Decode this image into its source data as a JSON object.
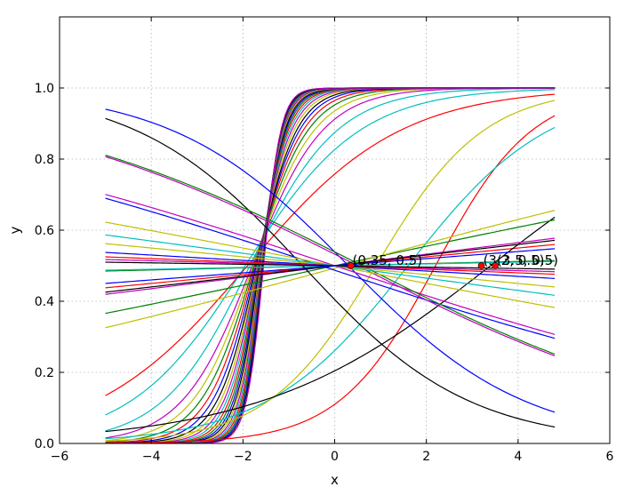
{
  "chart_data": {
    "type": "line",
    "title": "",
    "xlabel": "x",
    "ylabel": "y",
    "xlim": [
      -6,
      6
    ],
    "ylim": [
      0,
      1.2
    ],
    "xticks": [
      -6,
      -4,
      -2,
      0,
      2,
      4,
      6
    ],
    "xtick_labels": [
      "−6",
      "−4",
      "−2",
      "0",
      "2",
      "4",
      "6"
    ],
    "yticks": [
      0.0,
      0.2,
      0.4,
      0.6,
      0.8,
      1.0
    ],
    "ytick_labels": [
      "0.0",
      "0.2",
      "0.4",
      "0.6",
      "0.8",
      "1.0"
    ],
    "grid": true,
    "x_range": [
      -5,
      4.8
    ],
    "color_cycle": [
      "#0000ff",
      "#008000",
      "#ff0000",
      "#00bfbf",
      "#bf00bf",
      "#bfbf00",
      "#000000"
    ],
    "series": [
      {
        "x0": -1.9,
        "k": 0.6,
        "color": "#ff0000"
      },
      {
        "x0": -1.95,
        "k": 0.8,
        "color": "#00bfbf"
      },
      {
        "x0": -1.85,
        "k": 1.05,
        "color": "#00bfbf"
      },
      {
        "x0": -1.8,
        "k": 1.3,
        "color": "#bf00bf"
      },
      {
        "x0": -1.78,
        "k": 1.5,
        "color": "#bfbf00"
      },
      {
        "x0": -1.76,
        "k": 1.7,
        "color": "#008000"
      },
      {
        "x0": -1.74,
        "k": 1.9,
        "color": "#ff0000"
      },
      {
        "x0": -1.72,
        "k": 2.1,
        "color": "#0000ff"
      },
      {
        "x0": -1.7,
        "k": 2.3,
        "color": "#000000"
      },
      {
        "x0": -1.69,
        "k": 2.5,
        "color": "#bfbf00"
      },
      {
        "x0": -1.68,
        "k": 2.7,
        "color": "#bf00bf"
      },
      {
        "x0": -1.67,
        "k": 2.9,
        "color": "#00bfbf"
      },
      {
        "x0": -1.66,
        "k": 3.1,
        "color": "#ff0000"
      },
      {
        "x0": -1.65,
        "k": 3.3,
        "color": "#008000"
      },
      {
        "x0": -1.64,
        "k": 3.5,
        "color": "#0000ff"
      },
      {
        "x0": -1.63,
        "k": 3.7,
        "color": "#000000"
      },
      {
        "x0": -1.62,
        "k": 3.9,
        "color": "#bfbf00"
      },
      {
        "x0": -1.61,
        "k": 4.1,
        "color": "#bf00bf"
      },
      {
        "x0": -1.6,
        "k": 4.3,
        "color": "#00bfbf"
      },
      {
        "x0": -1.59,
        "k": 4.5,
        "color": "#ff0000"
      },
      {
        "x0": -1.58,
        "k": 4.7,
        "color": "#008000"
      },
      {
        "x0": -1.57,
        "k": 4.9,
        "color": "#0000ff"
      },
      {
        "x0": -1.56,
        "k": 5.1,
        "color": "#000000"
      },
      {
        "x0": -1.55,
        "k": 5.3,
        "color": "#bf00bf"
      },
      {
        "x0": 0.0,
        "k": 0.05,
        "color": "#ff0000"
      },
      {
        "x0": 2.2,
        "k": 0.95,
        "color": "#ff0000"
      },
      {
        "x0": 1.6,
        "k": 0.65,
        "color": "#00bfbf"
      },
      {
        "x0": 0.9,
        "k": 0.85,
        "color": "#bfbf00"
      },
      {
        "x0": 3.4,
        "k": 0.4,
        "color": "#000000"
      },
      {
        "x0": 0.0,
        "k": 0.11,
        "color": "#008000"
      },
      {
        "x0": 0.0,
        "k": 0.065,
        "color": "#bf00bf"
      },
      {
        "x0": 0.2,
        "k": 0.14,
        "color": "#bfbf00"
      },
      {
        "x0": 0.0,
        "k": 0.06,
        "color": "#000000"
      },
      {
        "x0": 0.0,
        "k": 0.012,
        "color": "#008000"
      },
      {
        "x0": 0.0,
        "k": 0.01,
        "color": "#00bfbf"
      },
      {
        "x0": 0.3,
        "k": -0.52,
        "color": "#0000ff"
      },
      {
        "x0": -0.7,
        "k": -0.55,
        "color": "#000000"
      },
      {
        "x0": -0.3,
        "k": -0.17,
        "color": "#0000ff"
      },
      {
        "x0": 0.0,
        "k": -0.17,
        "color": "#bf00bf"
      },
      {
        "x0": 0.5,
        "k": -0.26,
        "color": "#bf00bf"
      },
      {
        "x0": 0.6,
        "k": -0.26,
        "color": "#008000"
      },
      {
        "x0": 0.0,
        "k": -0.1,
        "color": "#bfbf00"
      },
      {
        "x0": 0.0,
        "k": -0.05,
        "color": "#bfbf00"
      },
      {
        "x0": 0.0,
        "k": -0.07,
        "color": "#00bfbf"
      },
      {
        "x0": 0.0,
        "k": -0.03,
        "color": "#0000ff"
      },
      {
        "x0": 0.0,
        "k": -0.02,
        "color": "#ff0000"
      },
      {
        "x0": 0.0,
        "k": -0.014,
        "color": "#bf00bf"
      },
      {
        "x0": 0.0,
        "k": -0.008,
        "color": "#000000"
      },
      {
        "x0": 0.0,
        "k": 0.04,
        "color": "#0000ff"
      }
    ],
    "points": [
      {
        "x": 0.35,
        "y": 0.5,
        "label": "(0.35, 0.5)",
        "color": "#ff0000"
      },
      {
        "x": 3.2,
        "y": 0.5,
        "label": "(3.2, 0.5)",
        "color": "#ff0000"
      },
      {
        "x": 3.5,
        "y": 0.5,
        "label": "(3.5, 0.5)",
        "color": "#ff0000"
      }
    ]
  }
}
